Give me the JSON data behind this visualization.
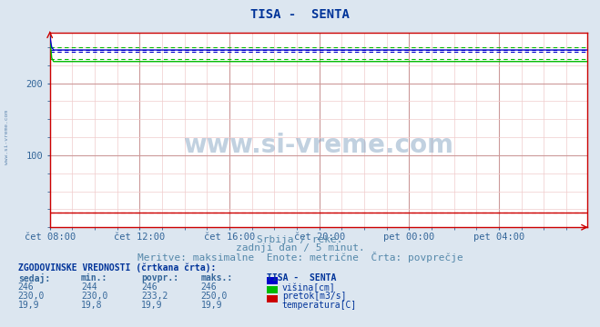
{
  "title": "TISA -  SENTA",
  "title_color": "#003399",
  "bg_color": "#dce6f0",
  "plot_bg_color": "#ffffff",
  "grid_color_major": "#cc9999",
  "grid_color_minor": "#f0cccc",
  "xlabel_texts": [
    "čet 08:00",
    "čet 12:00",
    "čet 16:00",
    "čet 20:00",
    "pet 00:00",
    "pet 04:00"
  ],
  "ylabel_ticks": [
    100,
    200
  ],
  "ylim": [
    0,
    270
  ],
  "xlim": [
    0,
    287
  ],
  "x_tick_positions": [
    0,
    48,
    96,
    144,
    192,
    240
  ],
  "watermark": "www.si-vreme.com",
  "subtitle1": "Srbija / reke.",
  "subtitle2": "zadnji dan / 5 minut.",
  "subtitle3": "Meritve: maksimalne  Enote: metrične  Črta: povprečje",
  "subtitle_color": "#5588aa",
  "legend_title": "TISA -  SENTA",
  "legend_items": [
    "višina[cm]",
    "pretok[m3/s]",
    "temperatura[C]"
  ],
  "legend_colors": [
    "#0000cc",
    "#00bb00",
    "#cc0000"
  ],
  "table_header": "ZGODOVINSKE VREDNOSTI (črtkana črta):",
  "table_cols": [
    "sedaj:",
    "min.:",
    "povpr.:",
    "maks.:"
  ],
  "table_data": [
    [
      "246",
      "244",
      "246",
      "246"
    ],
    [
      "230,0",
      "230,0",
      "233,2",
      "250,0"
    ],
    [
      "19,9",
      "19,8",
      "19,9",
      "19,9"
    ]
  ],
  "visina_value": 246,
  "visina_min": 244,
  "visina_avg": 246,
  "visina_max": 246,
  "pretok_value": 230.0,
  "pretok_min": 230.0,
  "pretok_avg": 233.2,
  "pretok_max": 250.0,
  "temp_value": 19.9,
  "temp_min": 19.8,
  "temp_avg": 19.9,
  "temp_max": 19.9,
  "n_points": 288,
  "visina_line_color": "#0000cc",
  "pretok_line_color": "#00bb00",
  "temp_line_color": "#cc0000",
  "axis_color": "#cc0000",
  "tick_color": "#336699",
  "watermark_color": "#7799bb"
}
